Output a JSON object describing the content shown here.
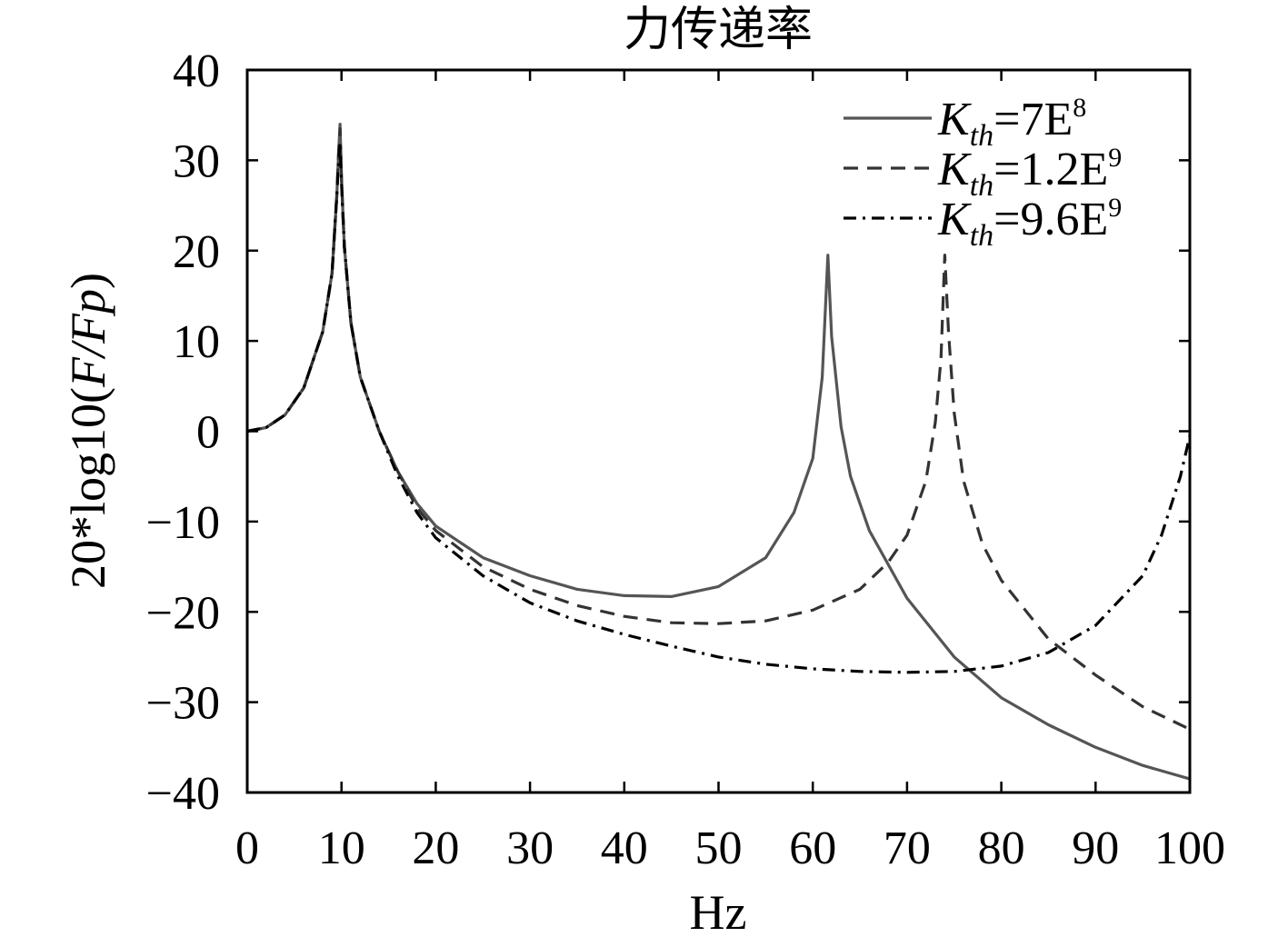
{
  "chart_data": {
    "type": "line",
    "title": "力传递率",
    "xlabel": "Hz",
    "ylabel_prefix": "20*log10(",
    "ylabel_italic": "F/Fp",
    "ylabel_suffix": ")",
    "xlim": [
      0,
      100
    ],
    "ylim": [
      -40,
      40
    ],
    "x_ticks": [
      "0",
      "10",
      "20",
      "30",
      "40",
      "50",
      "60",
      "70",
      "80",
      "90",
      "100"
    ],
    "y_ticks": [
      "40",
      "30",
      "20",
      "10",
      "0",
      "−10",
      "−20",
      "−30",
      "−40"
    ],
    "legend_position": "top-right",
    "grid": false,
    "colors": {
      "k7e8": "#555555",
      "k12e9": "#333333",
      "k96e9": "#000000"
    },
    "series": [
      {
        "id": "k7e8",
        "legend_main": "K",
        "legend_sub": "th",
        "legend_eq": "=7E",
        "legend_sup": "8",
        "style": "solid",
        "x": [
          0,
          2,
          4,
          6,
          8,
          9,
          9.5,
          9.7,
          9.85,
          10,
          10.3,
          11,
          12,
          14,
          16,
          18,
          20,
          25,
          30,
          35,
          40,
          45,
          50,
          55,
          58,
          60,
          61,
          61.6,
          62,
          63,
          64,
          66,
          70,
          75,
          80,
          85,
          90,
          95,
          100
        ],
        "y": [
          0,
          0.4,
          1.8,
          4.8,
          11.0,
          17.5,
          26.0,
          31.0,
          34.0,
          28.0,
          20.5,
          12.0,
          6.0,
          0.0,
          -4.5,
          -8.0,
          -10.5,
          -14.0,
          -16.0,
          -17.5,
          -18.2,
          -18.3,
          -17.2,
          -14.0,
          -9.0,
          -3.0,
          6.0,
          19.5,
          10.5,
          0.5,
          -5.0,
          -11.0,
          -18.5,
          -25.0,
          -29.5,
          -32.5,
          -35.0,
          -37.0,
          -38.5
        ]
      },
      {
        "id": "k12e9",
        "legend_main": "K",
        "legend_sub": "th",
        "legend_eq": "=1.2E",
        "legend_sup": "9",
        "style": "dashed",
        "x": [
          0,
          2,
          4,
          6,
          8,
          9,
          9.5,
          9.7,
          9.85,
          10,
          10.3,
          11,
          12,
          14,
          16,
          18,
          20,
          25,
          30,
          35,
          40,
          45,
          50,
          55,
          60,
          65,
          68,
          70,
          72,
          73,
          73.6,
          74,
          74.4,
          75,
          76,
          78,
          80,
          85,
          90,
          95,
          100
        ],
        "y": [
          0,
          0.4,
          1.8,
          4.8,
          11.0,
          17.5,
          26.0,
          31.0,
          33.5,
          28.0,
          20.5,
          12.0,
          6.0,
          0.0,
          -4.5,
          -8.5,
          -11.0,
          -15.0,
          -17.5,
          -19.3,
          -20.5,
          -21.2,
          -21.3,
          -21.0,
          -19.8,
          -17.5,
          -14.5,
          -11.5,
          -5.5,
          1.0,
          8.0,
          19.5,
          11.0,
          2.0,
          -5.5,
          -12.5,
          -16.5,
          -23.0,
          -27.0,
          -30.5,
          -33.0
        ]
      },
      {
        "id": "k96e9",
        "legend_main": "K",
        "legend_sub": "th",
        "legend_eq": "=9.6E",
        "legend_sup": "9",
        "style": "dashdot",
        "x": [
          0,
          2,
          4,
          6,
          8,
          9,
          9.5,
          9.7,
          9.85,
          10,
          10.3,
          11,
          12,
          14,
          16,
          18,
          20,
          25,
          30,
          35,
          40,
          45,
          50,
          55,
          60,
          65,
          70,
          75,
          80,
          85,
          90,
          95,
          97,
          99,
          100
        ],
        "y": [
          0,
          0.4,
          1.8,
          4.8,
          11.0,
          17.5,
          26.0,
          30.0,
          32.0,
          27.5,
          20.5,
          12.0,
          6.0,
          0.0,
          -5.0,
          -9.0,
          -11.8,
          -16.0,
          -19.0,
          -21.0,
          -22.5,
          -23.8,
          -25.0,
          -25.8,
          -26.3,
          -26.6,
          -26.7,
          -26.6,
          -26.0,
          -24.5,
          -21.5,
          -16.0,
          -11.5,
          -5.0,
          -0.5
        ]
      }
    ]
  }
}
